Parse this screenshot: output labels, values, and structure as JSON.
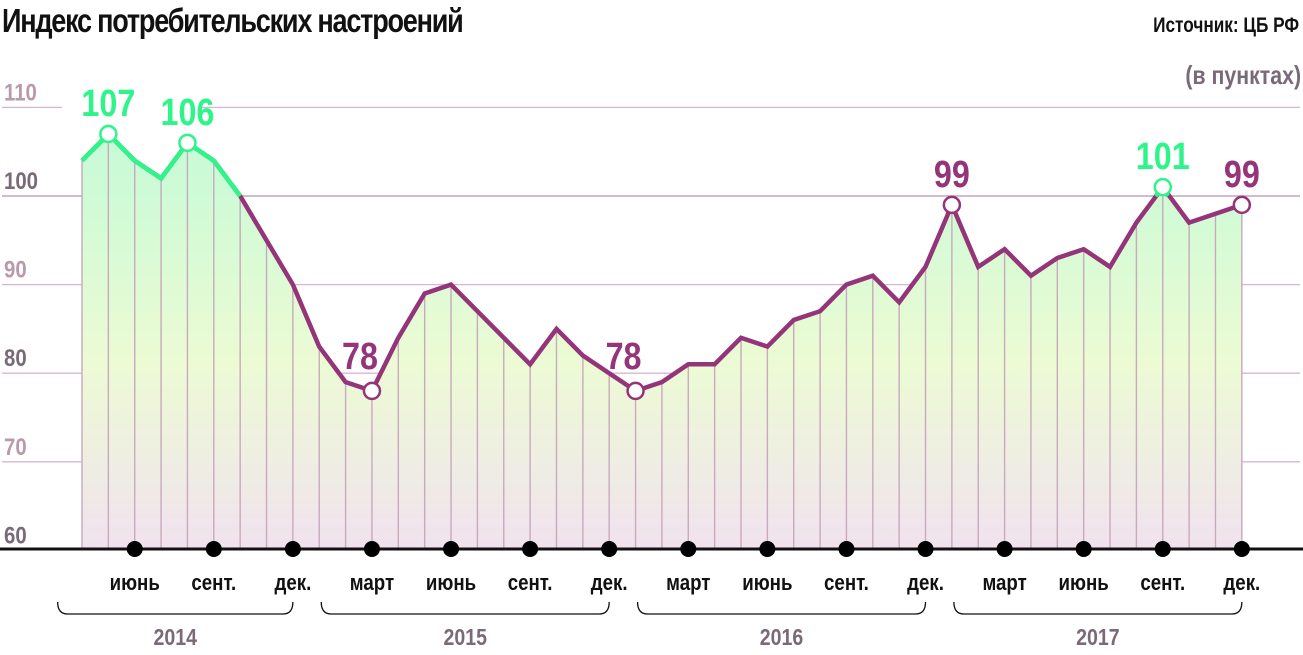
{
  "header": {
    "title": "Индекс потребительских настроений",
    "source": "Источник: ЦБ РФ",
    "units": "(в пунктах)"
  },
  "colors": {
    "line_purple": "#943479",
    "line_green": "#2ef58a",
    "fill_top": "#c4fbd6",
    "fill_mid": "#ecfbd4",
    "fill_bottom": "#f1e2ef",
    "grid": "#d9b6cf",
    "axis": "#111111",
    "ytick_light": "#b89aab",
    "ytick_dark": "#7a6a78"
  },
  "chart_data": {
    "type": "area",
    "title": "Индекс потребительских настроений",
    "subtitle": "(в пунктах)",
    "source": "Источник: ЦБ РФ",
    "xlabel": "",
    "ylabel": "",
    "ylim": [
      60,
      110
    ],
    "yticks": [
      60,
      70,
      80,
      90,
      100,
      110
    ],
    "grid": true,
    "x": [
      "2014-04",
      "2014-05",
      "2014-06",
      "2014-07",
      "2014-08",
      "2014-09",
      "2014-10",
      "2014-11",
      "2014-12",
      "2015-01",
      "2015-02",
      "2015-03",
      "2015-04",
      "2015-05",
      "2015-06",
      "2015-07",
      "2015-08",
      "2015-09",
      "2015-10",
      "2015-11",
      "2015-12",
      "2016-01",
      "2016-02",
      "2016-03",
      "2016-04",
      "2016-05",
      "2016-06",
      "2016-07",
      "2016-08",
      "2016-09",
      "2016-10",
      "2016-11",
      "2016-12",
      "2017-01",
      "2017-02",
      "2017-03",
      "2017-04",
      "2017-05",
      "2017-06",
      "2017-07",
      "2017-08",
      "2017-09",
      "2017-10",
      "2017-11",
      "2017-12"
    ],
    "series": [
      {
        "name": "Индекс потребительских настроений",
        "values": [
          104,
          107,
          104,
          102,
          106,
          104,
          100,
          95,
          90,
          83,
          79,
          78,
          84,
          89,
          90,
          87,
          84,
          81,
          85,
          82,
          80,
          78,
          79,
          81,
          81,
          84,
          83,
          86,
          87,
          90,
          91,
          88,
          92,
          99,
          92,
          94,
          91,
          93,
          94,
          92,
          97,
          101,
          97,
          98,
          99
        ]
      }
    ],
    "annotations": [
      {
        "index": 1,
        "label": "107",
        "color": "green"
      },
      {
        "index": 4,
        "label": "106",
        "color": "green"
      },
      {
        "index": 11,
        "label": "78",
        "color": "purple"
      },
      {
        "index": 21,
        "label": "78",
        "color": "purple"
      },
      {
        "index": 33,
        "label": "99",
        "color": "purple"
      },
      {
        "index": 41,
        "label": "101",
        "color": "green"
      },
      {
        "index": 44,
        "label": "99",
        "color": "purple"
      }
    ],
    "month_ticks": [
      {
        "label": "июнь",
        "index": 2
      },
      {
        "label": "сент.",
        "index": 5
      },
      {
        "label": "дек.",
        "index": 8
      },
      {
        "label": "март",
        "index": 11
      },
      {
        "label": "июнь",
        "index": 14
      },
      {
        "label": "сент.",
        "index": 17
      },
      {
        "label": "дек.",
        "index": 20
      },
      {
        "label": "март",
        "index": 23
      },
      {
        "label": "июнь",
        "index": 26
      },
      {
        "label": "сент.",
        "index": 29
      },
      {
        "label": "дек.",
        "index": 32
      },
      {
        "label": "март",
        "index": 35
      },
      {
        "label": "июнь",
        "index": 38
      },
      {
        "label": "сент.",
        "index": 41
      },
      {
        "label": "дек.",
        "index": 44
      }
    ],
    "years": [
      {
        "label": "2014",
        "from": -1,
        "to": 8
      },
      {
        "label": "2015",
        "from": 9,
        "to": 20
      },
      {
        "label": "2016",
        "from": 21,
        "to": 32
      },
      {
        "label": "2017",
        "from": 33,
        "to": 44
      }
    ]
  }
}
